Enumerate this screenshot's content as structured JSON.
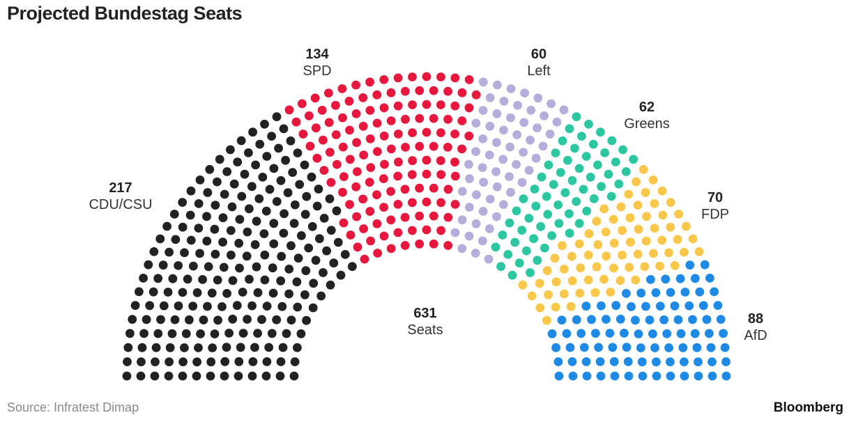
{
  "title": "Projected Bundestag Seats",
  "source": "Source: Infratest Dimap",
  "brand": "Bloomberg",
  "total": {
    "value": "631",
    "label": "Seats"
  },
  "chart_data": {
    "type": "parliament",
    "title": "Projected Bundestag Seats",
    "total_seats": 631,
    "parties": [
      {
        "name": "CDU/CSU",
        "seats": 217,
        "color": "#222222"
      },
      {
        "name": "SPD",
        "seats": 134,
        "color": "#e8173e"
      },
      {
        "name": "Left",
        "seats": 60,
        "color": "#b5aedb"
      },
      {
        "name": "Greens",
        "seats": 62,
        "color": "#2cc7a0"
      },
      {
        "name": "FDP",
        "seats": 70,
        "color": "#f9c84a"
      },
      {
        "name": "AfD",
        "seats": 88,
        "color": "#1e8ae6"
      }
    ]
  }
}
